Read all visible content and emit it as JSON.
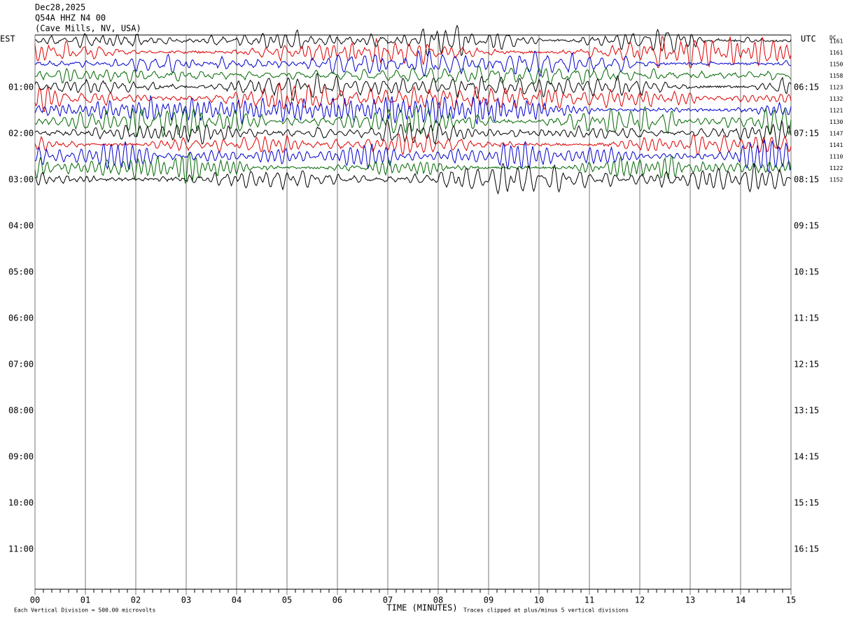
{
  "header": {
    "date": "Dec28,2025",
    "station": "Q54A HHZ N4 00",
    "location": "(Cave Mills, NV, USA)"
  },
  "left_axis": {
    "title": "EST",
    "labels": [
      "01:00",
      "02:00",
      "03:00",
      "04:00",
      "05:00",
      "06:00",
      "07:00",
      "08:00",
      "09:00",
      "10:00",
      "11:00"
    ]
  },
  "right_axis": {
    "title": "UTC",
    "labels": [
      "06:15",
      "07:15",
      "08:15",
      "09:15",
      "10:15",
      "11:15",
      "12:15",
      "13:15",
      "14:15",
      "15:15",
      "16:15"
    ]
  },
  "dc": {
    "title": "DC",
    "values": [
      1161,
      1161,
      1150,
      1158,
      1123,
      1132,
      1121,
      1130,
      1147,
      1141,
      1110,
      1122,
      1152
    ]
  },
  "x_axis": {
    "title": "TIME (MINUTES)",
    "labels": [
      "00",
      "01",
      "02",
      "03",
      "04",
      "05",
      "06",
      "07",
      "08",
      "09",
      "10",
      "11",
      "12",
      "13",
      "14",
      "15"
    ]
  },
  "footer": {
    "scale_note": "Each Vertical Division =  500.00 microvolts",
    "clip_note": "Traces clipped at plus/minus 5 vertical divisions"
  }
}
